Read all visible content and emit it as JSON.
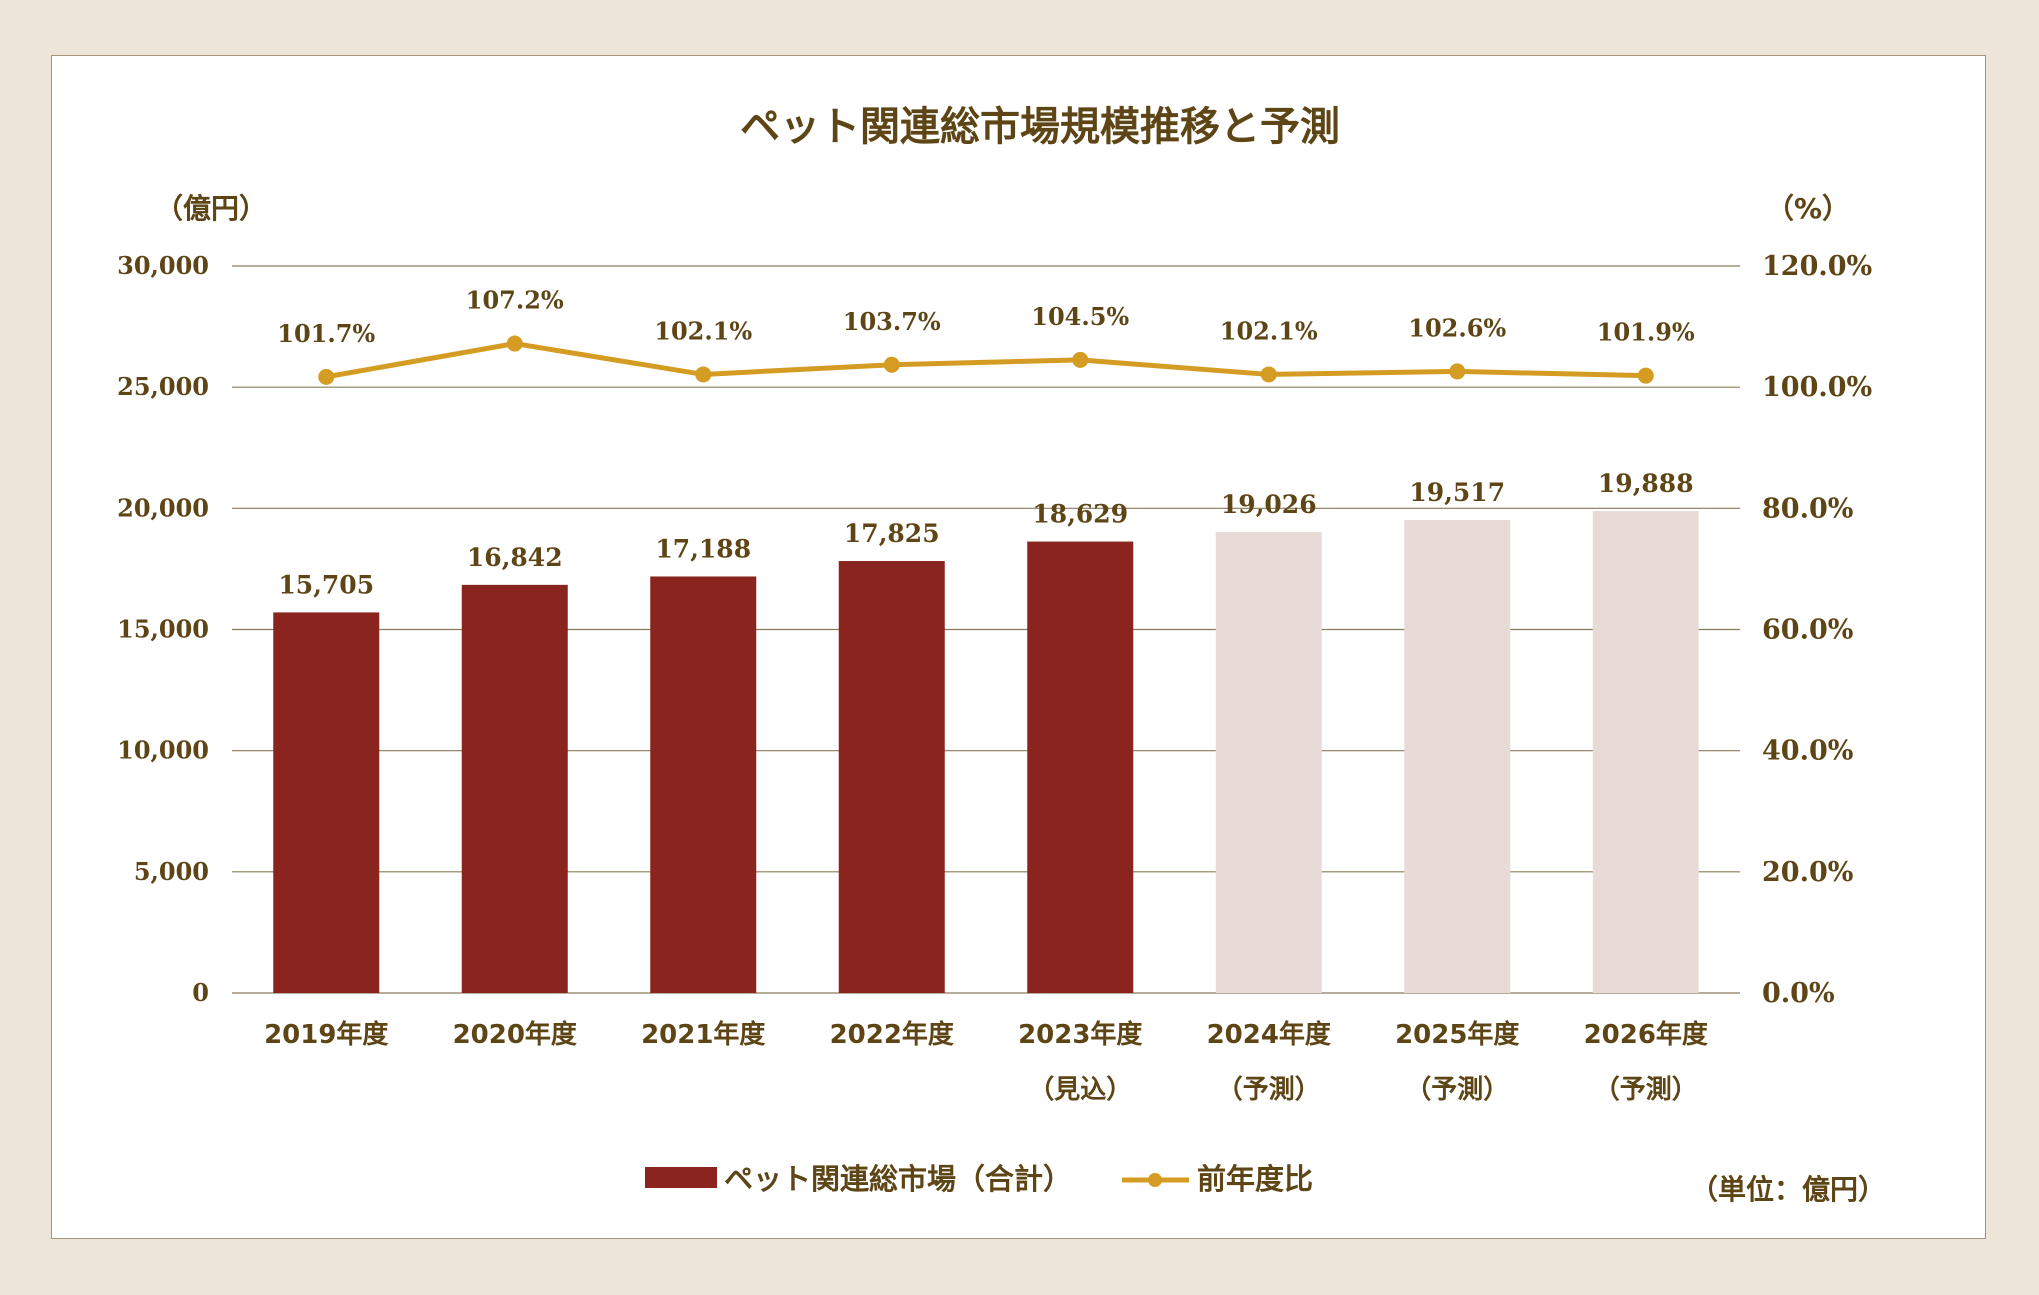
{
  "chart_data": {
    "type": "bar",
    "title": "ペット関連総市場規模推移と予測",
    "ylabel": "（億円）",
    "y2label": "（%）",
    "unit_note": "（単位：億円）",
    "ylim": [
      0,
      30000
    ],
    "y2lim": [
      0,
      120
    ],
    "yticks": [
      "0",
      "5,000",
      "10,000",
      "15,000",
      "20,000",
      "25,000",
      "30,000"
    ],
    "y2ticks": [
      "0.0%",
      "20.0%",
      "40.0%",
      "60.0%",
      "80.0%",
      "100.0%",
      "120.0%"
    ],
    "categories": [
      [
        "2019年度",
        ""
      ],
      [
        "2020年度",
        ""
      ],
      [
        "2021年度",
        ""
      ],
      [
        "2022年度",
        ""
      ],
      [
        "2023年度",
        "（見込）"
      ],
      [
        "2024年度",
        "（予測）"
      ],
      [
        "2025年度",
        "（予測）"
      ],
      [
        "2026年度",
        "（予測）"
      ]
    ],
    "series": [
      {
        "name": "ペット関連総市場（合計）",
        "type": "bar",
        "axis": "left",
        "values": [
          15705,
          16842,
          17188,
          17825,
          18629,
          19026,
          19517,
          19888
        ],
        "labels": [
          "15,705",
          "16,842",
          "17,188",
          "17,825",
          "18,629",
          "19,026",
          "19,517",
          "19,888"
        ],
        "forecast_from_index": 5
      },
      {
        "name": "前年度比",
        "type": "line",
        "axis": "right",
        "values": [
          101.7,
          107.2,
          102.1,
          103.7,
          104.5,
          102.1,
          102.6,
          101.9
        ],
        "labels": [
          "101.7%",
          "107.2%",
          "102.1%",
          "103.7%",
          "104.5%",
          "102.1%",
          "102.6%",
          "101.9%"
        ]
      }
    ],
    "colors": {
      "bar_actual": "#8a241f",
      "bar_forecast": "#e8dad6",
      "line": "#d49c23",
      "text": "#5e4515",
      "background": "#ece5d8"
    },
    "grid": true,
    "legend_position": "bottom-center"
  }
}
